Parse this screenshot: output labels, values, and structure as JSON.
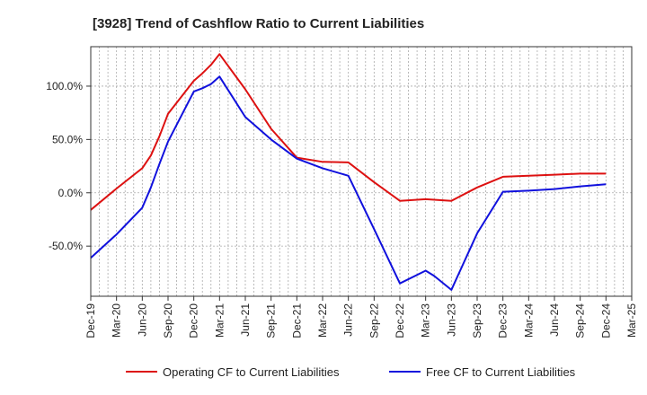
{
  "chart_data": {
    "type": "line",
    "title": "[3928]  Trend of Cashflow Ratio to Current Liabilities",
    "xlabel": "",
    "ylabel": "",
    "x_tick_labels": [
      "Dec-19",
      "Mar-20",
      "Jun-20",
      "Sep-20",
      "Dec-20",
      "Mar-21",
      "Jun-21",
      "Sep-21",
      "Dec-21",
      "Mar-22",
      "Jun-22",
      "Sep-22",
      "Dec-22",
      "Mar-23",
      "Jun-23",
      "Sep-23",
      "Dec-23",
      "Mar-24",
      "Jun-24",
      "Sep-24",
      "Dec-24",
      "Mar-25"
    ],
    "y_ticks": [
      -50,
      0,
      50,
      100
    ],
    "y_tick_labels": [
      "-50.0%",
      "0.0%",
      "50.0%",
      "100.0%"
    ],
    "ylim": [
      -97,
      137
    ],
    "grid": true,
    "legend_position": "bottom",
    "colors": {
      "operating": "#dd1111",
      "free": "#1111dd",
      "grid": "#aaaaaa",
      "axis": "#333333"
    },
    "series": [
      {
        "name": "Operating CF to Current Liabilities",
        "color": "#dd1111",
        "points": [
          [
            "Dec-19",
            -16
          ],
          [
            "Mar-20",
            4
          ],
          [
            "Jun-20",
            23
          ],
          [
            "Jul-20",
            35
          ],
          [
            "Aug-20",
            53
          ],
          [
            "Sep-20",
            74
          ],
          [
            "Dec-20",
            105
          ],
          [
            "Jan-21",
            112
          ],
          [
            "Feb-21",
            120
          ],
          [
            "Mar-21",
            130
          ],
          [
            "Jun-21",
            97
          ],
          [
            "Sep-21",
            60
          ],
          [
            "Dec-21",
            33
          ],
          [
            "Mar-22",
            29
          ],
          [
            "Jun-22",
            28.5
          ],
          [
            "Sep-22",
            10
          ],
          [
            "Dec-22",
            -7.5
          ],
          [
            "Mar-23",
            -6
          ],
          [
            "Jun-23",
            -7.5
          ],
          [
            "Sep-23",
            5
          ],
          [
            "Dec-23",
            15
          ],
          [
            "Mar-24",
            16
          ],
          [
            "Jun-24",
            17
          ],
          [
            "Sep-24",
            18
          ],
          [
            "Dec-24",
            18
          ]
        ]
      },
      {
        "name": "Free CF to Current Liabilities",
        "color": "#1111dd",
        "points": [
          [
            "Dec-19",
            -61
          ],
          [
            "Mar-20",
            -39
          ],
          [
            "Jun-20",
            -14
          ],
          [
            "Jul-20",
            5
          ],
          [
            "Aug-20",
            27
          ],
          [
            "Sep-20",
            48
          ],
          [
            "Dec-20",
            95
          ],
          [
            "Jan-21",
            98
          ],
          [
            "Feb-21",
            102
          ],
          [
            "Mar-21",
            109
          ],
          [
            "Jun-21",
            71
          ],
          [
            "Sep-21",
            50
          ],
          [
            "Dec-21",
            32
          ],
          [
            "Mar-22",
            23
          ],
          [
            "Jun-22",
            16
          ],
          [
            "Sep-22",
            -34
          ],
          [
            "Dec-22",
            -85
          ],
          [
            "Mar-23",
            -73
          ],
          [
            "Apr-23",
            -78
          ],
          [
            "Jun-23",
            -91
          ],
          [
            "Sep-23",
            -38
          ],
          [
            "Dec-23",
            1
          ],
          [
            "Mar-24",
            2
          ],
          [
            "Jun-24",
            3.5
          ],
          [
            "Sep-24",
            6
          ],
          [
            "Dec-24",
            8
          ]
        ]
      }
    ]
  }
}
